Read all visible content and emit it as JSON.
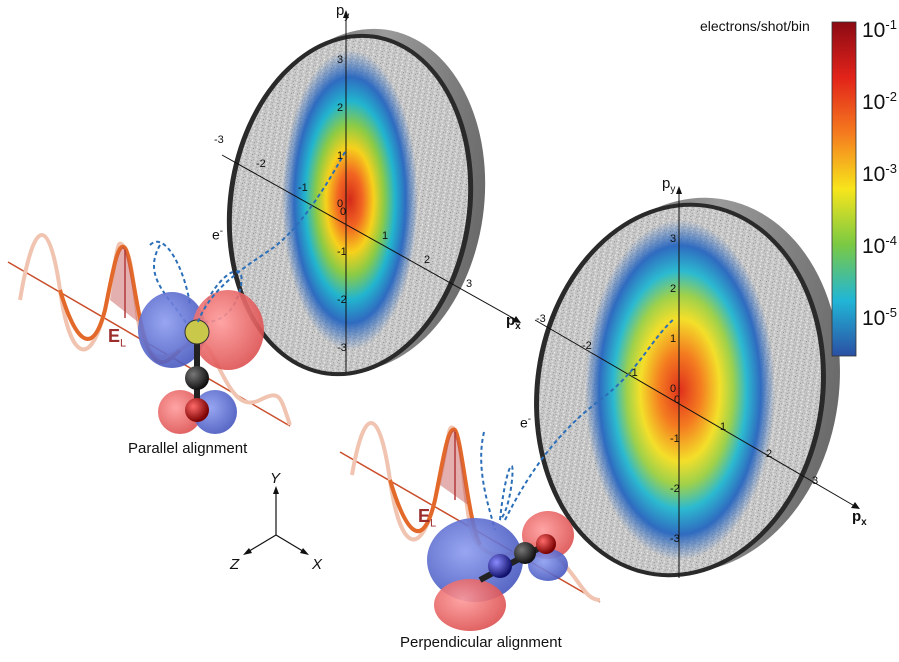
{
  "colorbar": {
    "title": "electrons/shot/bin",
    "ticks": [
      {
        "base": "10",
        "exp": "-1"
      },
      {
        "base": "10",
        "exp": "-2"
      },
      {
        "base": "10",
        "exp": "-3"
      },
      {
        "base": "10",
        "exp": "-4"
      },
      {
        "base": "10",
        "exp": "-5"
      }
    ],
    "stops": [
      "#8c0a14",
      "#e2231a",
      "#f57b1f",
      "#f7e51c",
      "#7ac943",
      "#21b6d7",
      "#2b4fa4"
    ]
  },
  "axes": {
    "py": "p",
    "py_sub": "y",
    "px": "p",
    "px_sub": "x",
    "tick_values": [
      "-3",
      "-2",
      "-1",
      "0",
      "1",
      "2",
      "3"
    ]
  },
  "labels": {
    "parallel": "Parallel alignment",
    "perpendicular": "Perpendicular alignment",
    "electron": "e",
    "electron_sup": "-",
    "field": "E",
    "field_sub": "L"
  },
  "triad": {
    "y": "Y",
    "z": "Z",
    "x": "X"
  },
  "colors": {
    "wave": "#e2692a",
    "wave_fade": "#f0c4b0",
    "lobe_blue": "#5b6fd1",
    "lobe_red": "#ee6a6a",
    "dashed": "#2c6fb8",
    "disk_rim": "#3a3a3a"
  }
}
